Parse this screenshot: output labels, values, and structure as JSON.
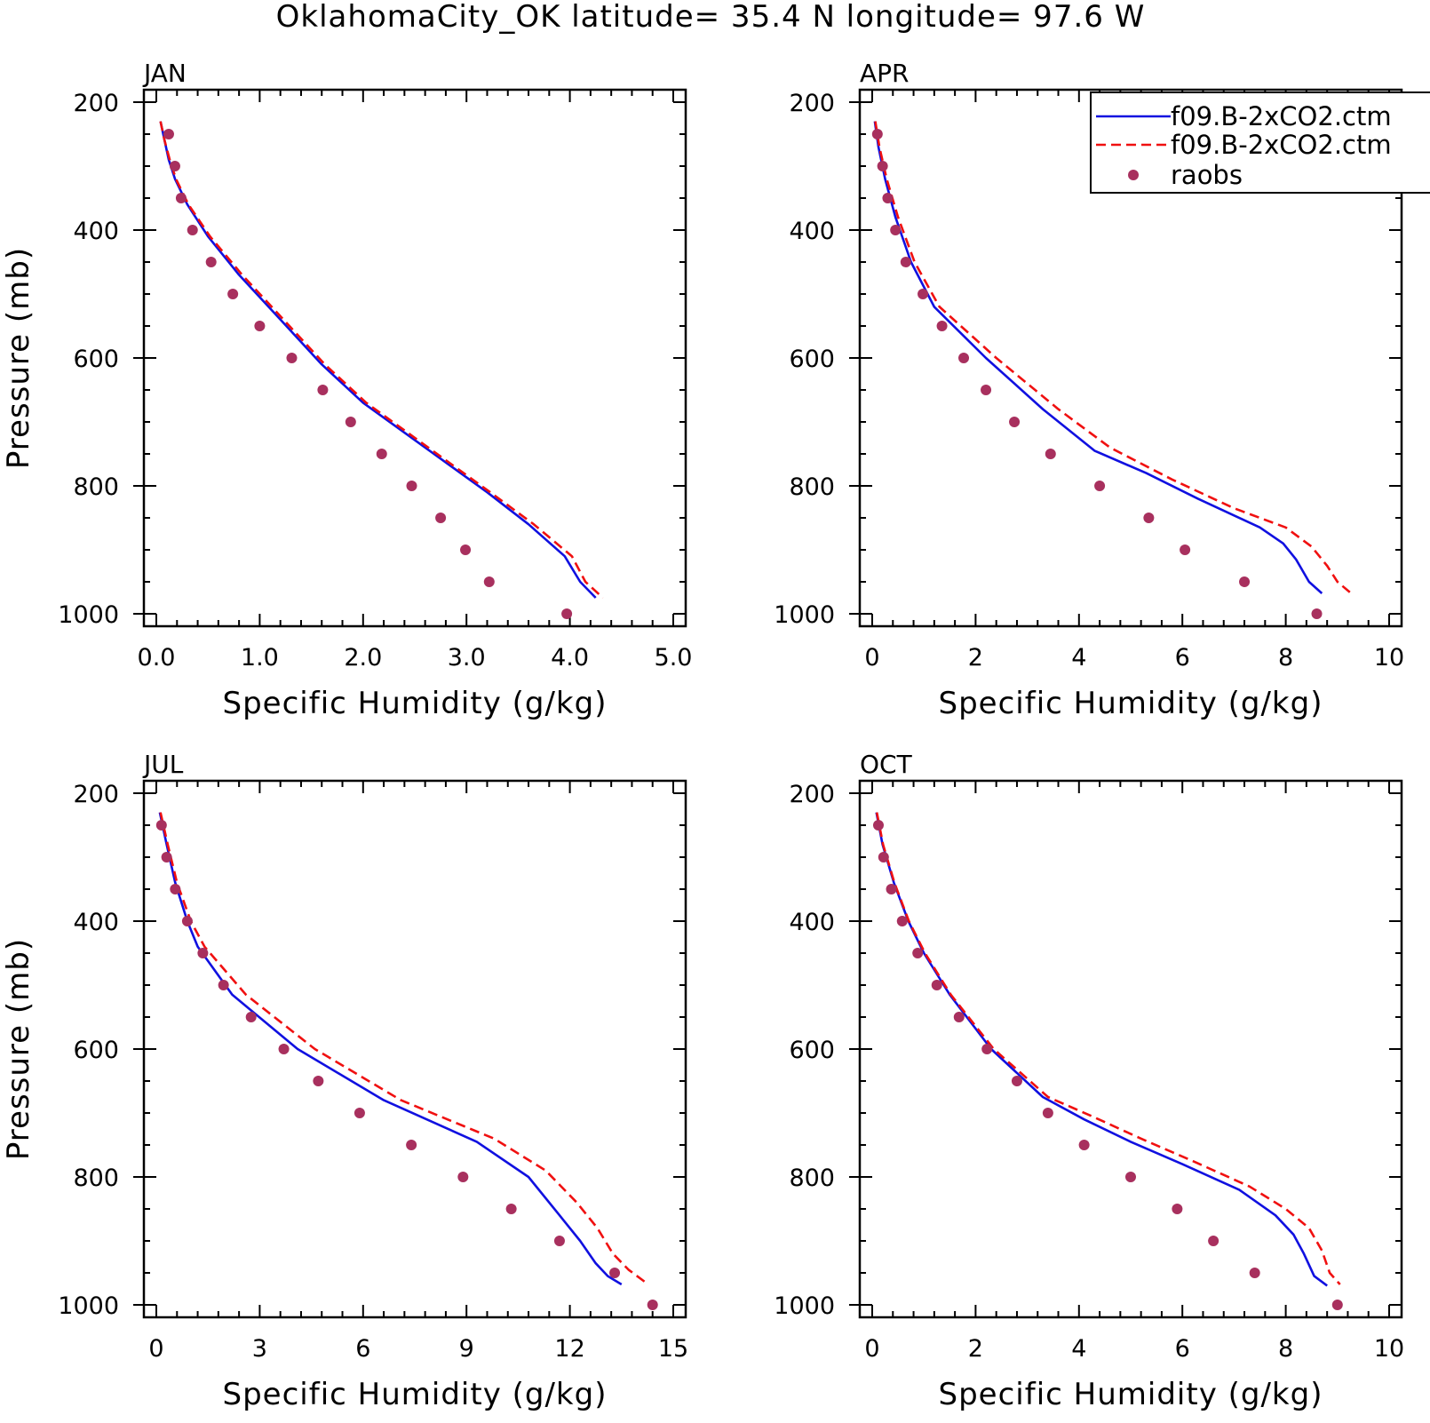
{
  "title": "OklahomaCity_OK   latitude= 35.4 N longitude= 97.6 W",
  "colors": {
    "series1": "#1010e0",
    "series2": "#f01010",
    "raobs": "#a8305e"
  },
  "legend": {
    "placement": "top-right",
    "entries": [
      "f09.B-2xCO2.ctm",
      "f09.B-2xCO2.ctm",
      "raobs"
    ]
  },
  "chart_data": [
    {
      "type": "line",
      "panel": "JAN",
      "xlabel": "Specific Humidity (g/kg)",
      "ylabel": "Pressure (mb)",
      "xlim": [
        0,
        5
      ],
      "ylim": [
        1000,
        200
      ],
      "y_reversed": true,
      "x_ticks": [
        "0.0",
        "1.0",
        "2.0",
        "3.0",
        "4.0",
        "5.0"
      ],
      "y_ticks": [
        "200",
        "400",
        "600",
        "800",
        "1000"
      ],
      "series": [
        {
          "name": "f09.B-2xCO2.ctm",
          "style": "solid",
          "points": [
            [
              0.04,
              230
            ],
            [
              0.08,
              260
            ],
            [
              0.12,
              290
            ],
            [
              0.18,
              320
            ],
            [
              0.3,
              360
            ],
            [
              0.5,
              410
            ],
            [
              0.8,
              470
            ],
            [
              1.2,
              540
            ],
            [
              1.6,
              610
            ],
            [
              2.0,
              670
            ],
            [
              2.6,
              740
            ],
            [
              3.2,
              810
            ],
            [
              3.6,
              860
            ],
            [
              3.95,
              910
            ],
            [
              4.1,
              950
            ],
            [
              4.25,
              975
            ]
          ]
        },
        {
          "name": "f09.B-2xCO2.ctm",
          "style": "dashed",
          "points": [
            [
              0.04,
              230
            ],
            [
              0.08,
              260
            ],
            [
              0.13,
              290
            ],
            [
              0.19,
              320
            ],
            [
              0.31,
              360
            ],
            [
              0.52,
              410
            ],
            [
              0.83,
              470
            ],
            [
              1.23,
              540
            ],
            [
              1.63,
              610
            ],
            [
              2.03,
              670
            ],
            [
              2.63,
              740
            ],
            [
              3.23,
              810
            ],
            [
              3.65,
              860
            ],
            [
              4.02,
              910
            ],
            [
              4.15,
              950
            ],
            [
              4.32,
              975
            ]
          ]
        },
        {
          "name": "raobs",
          "style": "markers",
          "points": [
            [
              0.12,
              250
            ],
            [
              0.18,
              300
            ],
            [
              0.24,
              350
            ],
            [
              0.35,
              400
            ],
            [
              0.53,
              450
            ],
            [
              0.74,
              500
            ],
            [
              1.0,
              550
            ],
            [
              1.31,
              600
            ],
            [
              1.61,
              650
            ],
            [
              1.88,
              700
            ],
            [
              2.18,
              750
            ],
            [
              2.47,
              800
            ],
            [
              2.75,
              850
            ],
            [
              2.99,
              900
            ],
            [
              3.22,
              950
            ],
            [
              3.97,
              1000
            ]
          ]
        }
      ]
    },
    {
      "type": "line",
      "panel": "APR",
      "xlabel": "Specific Humidity (g/kg)",
      "ylabel": "",
      "xlim": [
        0,
        10
      ],
      "ylim": [
        1000,
        200
      ],
      "y_reversed": true,
      "x_ticks": [
        "0",
        "2",
        "4",
        "6",
        "8",
        "10"
      ],
      "y_ticks": [
        "200",
        "400",
        "600",
        "800",
        "1000"
      ],
      "series": [
        {
          "name": "f09.B-2xCO2.ctm",
          "style": "solid",
          "points": [
            [
              0.05,
              230
            ],
            [
              0.12,
              270
            ],
            [
              0.25,
              320
            ],
            [
              0.45,
              380
            ],
            [
              0.75,
              450
            ],
            [
              1.2,
              520
            ],
            [
              2.2,
              600
            ],
            [
              3.3,
              680
            ],
            [
              4.3,
              745
            ],
            [
              5.3,
              780
            ],
            [
              6.3,
              820
            ],
            [
              7.5,
              865
            ],
            [
              7.95,
              890
            ],
            [
              8.2,
              915
            ],
            [
              8.45,
              950
            ],
            [
              8.7,
              968
            ]
          ]
        },
        {
          "name": "f09.B-2xCO2.ctm",
          "style": "dashed",
          "points": [
            [
              0.06,
              230
            ],
            [
              0.14,
              270
            ],
            [
              0.28,
              320
            ],
            [
              0.5,
              380
            ],
            [
              0.82,
              450
            ],
            [
              1.3,
              520
            ],
            [
              2.4,
              600
            ],
            [
              3.6,
              680
            ],
            [
              4.6,
              740
            ],
            [
              5.8,
              790
            ],
            [
              7.0,
              835
            ],
            [
              8.0,
              865
            ],
            [
              8.5,
              895
            ],
            [
              8.8,
              925
            ],
            [
              9.0,
              950
            ],
            [
              9.25,
              967
            ]
          ]
        },
        {
          "name": "raobs",
          "style": "markers",
          "points": [
            [
              0.1,
              250
            ],
            [
              0.2,
              300
            ],
            [
              0.3,
              350
            ],
            [
              0.45,
              400
            ],
            [
              0.65,
              450
            ],
            [
              0.98,
              500
            ],
            [
              1.35,
              550
            ],
            [
              1.77,
              600
            ],
            [
              2.2,
              650
            ],
            [
              2.75,
              700
            ],
            [
              3.45,
              750
            ],
            [
              4.4,
              800
            ],
            [
              5.35,
              850
            ],
            [
              6.05,
              900
            ],
            [
              7.2,
              950
            ],
            [
              8.6,
              1000
            ]
          ]
        }
      ]
    },
    {
      "type": "line",
      "panel": "JUL",
      "xlabel": "Specific Humidity (g/kg)",
      "ylabel": "Pressure (mb)",
      "xlim": [
        0,
        15
      ],
      "ylim": [
        1000,
        200
      ],
      "y_reversed": true,
      "x_ticks": [
        "0",
        "3",
        "6",
        "9",
        "12",
        "15"
      ],
      "y_ticks": [
        "200",
        "400",
        "600",
        "800",
        "1000"
      ],
      "series": [
        {
          "name": "f09.B-2xCO2.ctm",
          "style": "solid",
          "points": [
            [
              0.1,
              230
            ],
            [
              0.3,
              280
            ],
            [
              0.55,
              340
            ],
            [
              0.9,
              400
            ],
            [
              1.2,
              440
            ],
            [
              2.2,
              515
            ],
            [
              4.1,
              600
            ],
            [
              6.6,
              680
            ],
            [
              9.3,
              745
            ],
            [
              10.8,
              800
            ],
            [
              11.7,
              860
            ],
            [
              12.3,
              900
            ],
            [
              12.75,
              935
            ],
            [
              13.1,
              955
            ],
            [
              13.5,
              968
            ]
          ]
        },
        {
          "name": "f09.B-2xCO2.ctm",
          "style": "dashed",
          "points": [
            [
              0.12,
              230
            ],
            [
              0.33,
              280
            ],
            [
              0.6,
              340
            ],
            [
              1.0,
              400
            ],
            [
              1.4,
              440
            ],
            [
              2.6,
              515
            ],
            [
              4.6,
              600
            ],
            [
              7.1,
              680
            ],
            [
              9.8,
              740
            ],
            [
              11.3,
              790
            ],
            [
              12.2,
              840
            ],
            [
              12.8,
              880
            ],
            [
              13.25,
              920
            ],
            [
              13.7,
              945
            ],
            [
              14.2,
              965
            ]
          ]
        },
        {
          "name": "raobs",
          "style": "markers",
          "points": [
            [
              0.15,
              250
            ],
            [
              0.3,
              300
            ],
            [
              0.55,
              350
            ],
            [
              0.9,
              400
            ],
            [
              1.35,
              450
            ],
            [
              1.95,
              500
            ],
            [
              2.75,
              550
            ],
            [
              3.7,
              600
            ],
            [
              4.7,
              650
            ],
            [
              5.9,
              700
            ],
            [
              7.4,
              750
            ],
            [
              8.9,
              800
            ],
            [
              10.3,
              850
            ],
            [
              11.7,
              900
            ],
            [
              13.3,
              950
            ],
            [
              14.4,
              1000
            ]
          ]
        }
      ]
    },
    {
      "type": "line",
      "panel": "OCT",
      "xlabel": "Specific Humidity (g/kg)",
      "ylabel": "",
      "xlim": [
        0,
        10
      ],
      "ylim": [
        1000,
        200
      ],
      "y_reversed": true,
      "x_ticks": [
        "0",
        "2",
        "4",
        "6",
        "8",
        "10"
      ],
      "y_ticks": [
        "200",
        "400",
        "600",
        "800",
        "1000"
      ],
      "series": [
        {
          "name": "f09.B-2xCO2.ctm",
          "style": "solid",
          "points": [
            [
              0.08,
              230
            ],
            [
              0.2,
              280
            ],
            [
              0.42,
              340
            ],
            [
              0.7,
              400
            ],
            [
              1.0,
              450
            ],
            [
              1.5,
              515
            ],
            [
              2.3,
              600
            ],
            [
              3.3,
              675
            ],
            [
              4.1,
              710
            ],
            [
              5.0,
              745
            ],
            [
              6.0,
              780
            ],
            [
              7.1,
              820
            ],
            [
              7.8,
              860
            ],
            [
              8.15,
              890
            ],
            [
              8.35,
              920
            ],
            [
              8.55,
              955
            ],
            [
              8.8,
              970
            ]
          ]
        },
        {
          "name": "f09.B-2xCO2.ctm",
          "style": "dashed",
          "points": [
            [
              0.09,
              230
            ],
            [
              0.21,
              280
            ],
            [
              0.43,
              340
            ],
            [
              0.71,
              400
            ],
            [
              1.02,
              450
            ],
            [
              1.52,
              515
            ],
            [
              2.35,
              600
            ],
            [
              3.4,
              675
            ],
            [
              4.25,
              705
            ],
            [
              5.2,
              740
            ],
            [
              6.2,
              775
            ],
            [
              7.3,
              815
            ],
            [
              8.0,
              850
            ],
            [
              8.45,
              880
            ],
            [
              8.7,
              915
            ],
            [
              8.85,
              950
            ],
            [
              9.05,
              968
            ]
          ]
        },
        {
          "name": "raobs",
          "style": "markers",
          "points": [
            [
              0.12,
              250
            ],
            [
              0.22,
              300
            ],
            [
              0.37,
              350
            ],
            [
              0.58,
              400
            ],
            [
              0.88,
              450
            ],
            [
              1.25,
              500
            ],
            [
              1.68,
              550
            ],
            [
              2.22,
              600
            ],
            [
              2.8,
              650
            ],
            [
              3.4,
              700
            ],
            [
              4.1,
              750
            ],
            [
              5.0,
              800
            ],
            [
              5.9,
              850
            ],
            [
              6.6,
              900
            ],
            [
              7.4,
              950
            ],
            [
              9.0,
              1000
            ]
          ]
        }
      ]
    }
  ]
}
